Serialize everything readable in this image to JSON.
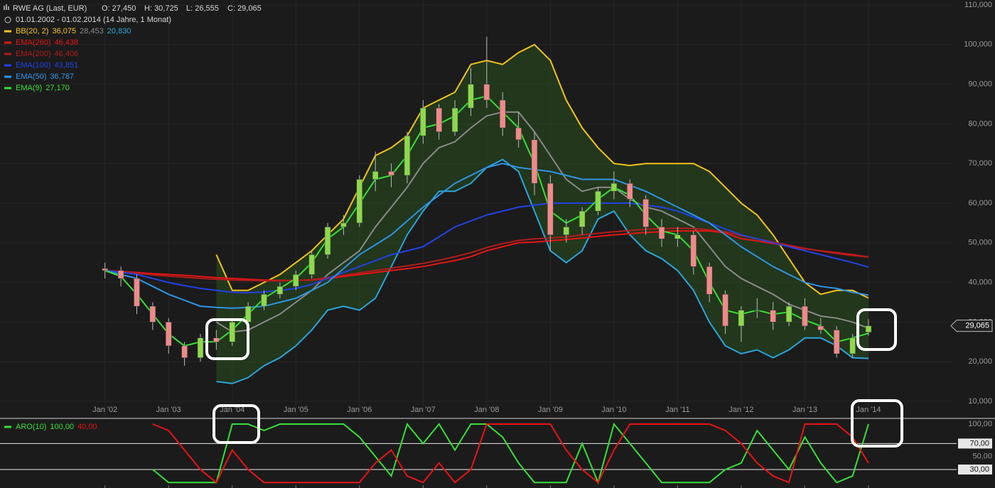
{
  "header": {
    "title": "RWE AG (Last, EUR)",
    "open": "O: 27,450",
    "high": "H: 30,725",
    "low": "L: 26,555",
    "close": "C: 29,065",
    "range": "01.01.2002 - 01.02.2014 (14 Jahre, 1 Monat)"
  },
  "chart_data": [
    {
      "type": "candlestick",
      "x": [
        2002,
        2002.25,
        2002.5,
        2002.75,
        2003,
        2003.25,
        2003.5,
        2003.75,
        2004,
        2004.25,
        2004.5,
        2004.75,
        2005,
        2005.25,
        2005.5,
        2005.75,
        2006,
        2006.25,
        2006.5,
        2006.75,
        2007,
        2007.25,
        2007.5,
        2007.75,
        2008,
        2008.25,
        2008.5,
        2008.75,
        2009,
        2009.25,
        2009.5,
        2009.75,
        2010,
        2010.25,
        2010.5,
        2010.75,
        2011,
        2011.25,
        2011.5,
        2011.75,
        2012,
        2012.25,
        2012.5,
        2012.75,
        2013,
        2013.25,
        2013.5,
        2013.75,
        2014
      ],
      "ohlc": {
        "open": [
          43.5,
          43,
          41,
          34,
          30,
          24,
          21,
          26,
          25,
          30,
          34,
          37,
          39,
          42,
          47,
          54,
          55,
          66,
          68,
          67,
          77,
          84,
          78,
          84,
          90,
          86,
          79,
          76,
          65,
          52,
          54,
          58,
          63,
          65,
          61,
          54,
          51,
          52,
          44,
          37,
          29,
          33,
          33,
          30,
          34,
          29,
          28,
          22,
          27.45
        ],
        "high": [
          45,
          44,
          42,
          35,
          31,
          25,
          27,
          28,
          31,
          35,
          38,
          40,
          43,
          48,
          55,
          57,
          67,
          73,
          70,
          78,
          86,
          85,
          86,
          94,
          102,
          88,
          83,
          78,
          67,
          56,
          59,
          64,
          68,
          66,
          62,
          56,
          54,
          53,
          45,
          38,
          34,
          36,
          35,
          35,
          36,
          31,
          29,
          27,
          30.725
        ],
        "low": [
          41,
          39,
          32,
          28,
          22,
          19,
          20,
          23,
          24,
          29,
          33,
          36,
          38,
          41,
          46,
          52,
          54,
          63,
          64,
          65,
          75,
          76,
          77,
          82,
          84,
          77,
          74,
          62,
          48,
          50,
          52,
          57,
          61,
          59,
          52,
          49,
          49,
          42,
          35,
          27,
          25,
          31,
          28,
          29,
          28,
          27,
          21,
          21,
          26.555
        ],
        "close": [
          43,
          41,
          34,
          30,
          24,
          21,
          26,
          25,
          30,
          34,
          37,
          39,
          42,
          47,
          54,
          55,
          66,
          68,
          67,
          77,
          84,
          78,
          84,
          90,
          86,
          79,
          76,
          65,
          52,
          54,
          58,
          63,
          65,
          61,
          54,
          51,
          52,
          44,
          37,
          29,
          33,
          33,
          30,
          34,
          29,
          28,
          22,
          26,
          29.065
        ],
        "up_color": "#8ed84e",
        "down_color": "#ee8a8a"
      },
      "band_fill": "rgba(45,95,30,0.42)",
      "series": [
        {
          "name": "BB(20, 2)",
          "color": "#f2c418",
          "last_label": "36,075",
          "values": [
            null,
            null,
            null,
            null,
            null,
            null,
            null,
            47,
            38,
            38,
            40,
            42,
            45,
            48,
            52,
            56,
            64,
            72,
            74,
            77,
            84,
            86,
            88,
            95,
            96,
            95,
            98,
            100,
            96,
            86,
            79,
            74,
            70,
            69.5,
            70,
            70,
            70,
            70,
            68,
            64,
            60,
            57,
            52,
            46,
            40,
            37,
            38,
            38,
            36.075
          ]
        },
        {
          "color": "#8a8a8a",
          "last_label": "28,453",
          "values": [
            null,
            null,
            null,
            null,
            null,
            null,
            null,
            30,
            27.5,
            28,
            30,
            32,
            35,
            38,
            42,
            45,
            48,
            54,
            59,
            64,
            70,
            74,
            75.5,
            79,
            82,
            83,
            83,
            78,
            72,
            66,
            63,
            64,
            64,
            61,
            59,
            58,
            56,
            54,
            49,
            44,
            41,
            39,
            37,
            34.5,
            33,
            31.5,
            31,
            30,
            28.453
          ]
        },
        {
          "color": "#2ba5dc",
          "last_label": "20,830",
          "values": [
            null,
            null,
            null,
            null,
            null,
            null,
            null,
            15,
            14.5,
            16,
            19,
            21,
            24,
            28,
            33,
            34,
            33,
            36,
            44,
            52,
            58,
            63,
            63,
            65,
            69,
            71,
            68,
            58,
            48,
            45,
            48,
            56,
            58,
            52,
            48,
            46,
            43,
            38,
            30,
            24,
            22,
            23,
            21,
            23,
            26,
            26,
            24,
            21,
            20.83
          ]
        },
        {
          "name": "EMA(260)",
          "color": "#e81414",
          "last_label": "46,438",
          "values": [
            43,
            42.8,
            42.5,
            42.2,
            42,
            41.8,
            41.5,
            41.2,
            41,
            40.8,
            40.6,
            40.5,
            40.5,
            40.6,
            41,
            41.5,
            42,
            42.5,
            43,
            43.5,
            44,
            44.8,
            45.5,
            46.5,
            48,
            49,
            50,
            50.2,
            50.5,
            50.8,
            51.2,
            51.6,
            52,
            52.3,
            52.6,
            52.8,
            53,
            53,
            53,
            52.5,
            51,
            50.5,
            49.8,
            49.2,
            48.5,
            48,
            47.5,
            47,
            46.438
          ]
        },
        {
          "name": "EMA(200)",
          "color": "#b01c1c",
          "last_label": "46,406",
          "values": [
            43,
            42.8,
            42.3,
            41.9,
            41.6,
            41.3,
            41,
            40.8,
            40.6,
            40.5,
            40.4,
            40.4,
            40.5,
            40.7,
            41.2,
            41.8,
            42.4,
            43,
            43.6,
            44.2,
            44.8,
            45.6,
            46.5,
            47.5,
            48.8,
            49.8,
            50.6,
            51,
            51.2,
            51.5,
            52,
            52.4,
            52.8,
            53.1,
            53.4,
            53.6,
            53.7,
            53.6,
            53.3,
            52.8,
            51.8,
            51,
            50.2,
            49.4,
            48.6,
            47.9,
            47.3,
            46.8,
            46.406
          ]
        },
        {
          "name": "EMA(100)",
          "color": "#2242e6",
          "last_label": "43,851",
          "values": [
            43,
            42.6,
            42,
            41,
            40,
            39.2,
            38.5,
            38,
            37.5,
            37.4,
            37.6,
            38,
            38.5,
            39.5,
            41,
            42.5,
            44,
            45.5,
            47,
            48,
            49,
            51.5,
            54,
            55.5,
            57,
            58,
            59,
            59.5,
            60,
            60,
            60,
            60,
            60,
            60,
            59.5,
            59,
            58,
            56.5,
            55,
            53.5,
            52,
            51,
            50,
            49,
            48,
            47,
            46,
            45,
            43.851
          ]
        },
        {
          "name": "EMA(50)",
          "color": "#2e95e6",
          "last_label": "36,787",
          "values": [
            43,
            42,
            41,
            39,
            37,
            35.5,
            34,
            33.7,
            33.5,
            33.7,
            34,
            35,
            36,
            38,
            40,
            43.5,
            47,
            49.5,
            52,
            55.5,
            59,
            62,
            65,
            67,
            69,
            70,
            69,
            68.5,
            68,
            67,
            66,
            66,
            66,
            64.5,
            63,
            61,
            59,
            57,
            55,
            52,
            49,
            46.5,
            44,
            42,
            40,
            39,
            38.5,
            37.5,
            36.787
          ]
        },
        {
          "name": "EMA(9)",
          "color": "#36e036",
          "last_label": "27,170",
          "values": [
            43,
            41.5,
            37,
            32,
            27,
            24,
            25,
            25,
            28,
            32,
            36,
            38.5,
            41,
            45,
            51,
            54,
            60,
            66,
            67,
            72,
            79,
            80,
            82,
            86,
            87,
            83,
            79,
            70,
            58,
            55,
            57,
            61,
            64,
            62,
            57,
            53,
            52,
            48,
            40,
            33,
            32,
            33,
            32,
            32.5,
            30.5,
            29,
            25,
            26,
            27.17
          ]
        }
      ],
      "xlim": [
        2000.35,
        2015
      ],
      "xticks": [
        {
          "value": 2002,
          "label": "Jan '02"
        },
        {
          "value": 2003,
          "label": "Jan '03"
        },
        {
          "value": 2004,
          "label": "Jan '04"
        },
        {
          "value": 2005,
          "label": "Jan '05"
        },
        {
          "value": 2006,
          "label": "Jan '06"
        },
        {
          "value": 2007,
          "label": "Jan '07"
        },
        {
          "value": 2008,
          "label": "Jan '08"
        },
        {
          "value": 2009,
          "label": "Jan '09"
        },
        {
          "value": 2010,
          "label": "Jan '10"
        },
        {
          "value": 2011,
          "label": "Jan '11"
        },
        {
          "value": 2012,
          "label": "Jan '12"
        },
        {
          "value": 2013,
          "label": "Jan '13"
        },
        {
          "value": 2014,
          "label": "Jan '14"
        }
      ],
      "ylim": [
        10,
        110
      ],
      "yticks": [
        {
          "value": 10,
          "label": "10,000"
        },
        {
          "value": 20,
          "label": "20,000"
        },
        {
          "value": 30,
          "label": "30,000"
        },
        {
          "value": 40,
          "label": "40,000"
        },
        {
          "value": 50,
          "label": "50,000"
        },
        {
          "value": 60,
          "label": "60,000"
        },
        {
          "value": 70,
          "label": "70,000"
        },
        {
          "value": 80,
          "label": "80,000"
        },
        {
          "value": 90,
          "label": "90,000"
        },
        {
          "value": 100,
          "label": "100,000"
        },
        {
          "value": 110,
          "label": "110,000"
        }
      ],
      "grid": true,
      "price_marker": {
        "value": 29.065,
        "label": "29,065"
      }
    },
    {
      "type": "line",
      "x": [
        2002,
        2002.25,
        2002.5,
        2002.75,
        2003,
        2003.25,
        2003.5,
        2003.75,
        2004,
        2004.25,
        2004.5,
        2004.75,
        2005,
        2005.25,
        2005.5,
        2005.75,
        2006,
        2006.25,
        2006.5,
        2006.75,
        2007,
        2007.25,
        2007.5,
        2007.75,
        2008,
        2008.25,
        2008.5,
        2008.75,
        2009,
        2009.25,
        2009.5,
        2009.75,
        2010,
        2010.25,
        2010.5,
        2010.75,
        2011,
        2011.25,
        2011.5,
        2011.75,
        2012,
        2012.25,
        2012.5,
        2012.75,
        2013,
        2013.25,
        2013.5,
        2013.75,
        2014
      ],
      "series": [
        {
          "name": "ARO(10)",
          "color": "#36e036",
          "last_label": "100,00",
          "values": [
            null,
            null,
            null,
            30,
            10,
            10,
            10,
            10,
            100,
            100,
            90,
            100,
            100,
            100,
            100,
            100,
            80,
            50,
            20,
            100,
            70,
            100,
            60,
            100,
            100,
            80,
            40,
            10,
            10,
            10,
            70,
            10,
            100,
            70,
            40,
            10,
            10,
            10,
            10,
            30,
            40,
            90,
            60,
            30,
            80,
            40,
            10,
            20,
            100
          ]
        },
        {
          "color": "#e81414",
          "last_label": "40,00",
          "values": [
            null,
            null,
            null,
            100,
            90,
            60,
            30,
            10,
            60,
            30,
            10,
            10,
            10,
            10,
            10,
            10,
            10,
            40,
            60,
            20,
            10,
            40,
            10,
            30,
            100,
            100,
            100,
            100,
            100,
            60,
            30,
            10,
            60,
            100,
            100,
            100,
            100,
            100,
            100,
            90,
            70,
            40,
            20,
            10,
            100,
            100,
            100,
            80,
            40
          ]
        }
      ],
      "xlim": [
        2000.35,
        2015
      ],
      "ylim": [
        0,
        100
      ],
      "yticks": [
        {
          "value": 100,
          "label": "100,00"
        },
        {
          "value": 50,
          "label": "50,00"
        }
      ],
      "levels": [
        {
          "value": 70,
          "label": "70,00"
        },
        {
          "value": 30,
          "label": "30,00"
        }
      ]
    }
  ]
}
